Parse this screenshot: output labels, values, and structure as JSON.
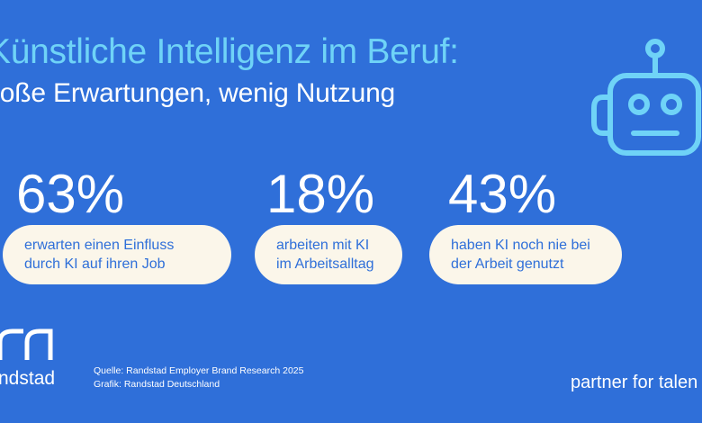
{
  "header": {
    "title": "Künstliche Intelligenz im Beruf:",
    "subtitle": "roße Erwartungen, wenig Nutzung"
  },
  "icons": {
    "robot": "robot-icon",
    "logo": "randstad-logo"
  },
  "colors": {
    "background": "#2f6fd9",
    "accent": "#6fd3f7",
    "pill": "#fbf6ea",
    "text": "#ffffff"
  },
  "chart_data": {
    "type": "table",
    "title": "Künstliche Intelligenz im Beruf:",
    "stats": [
      {
        "value": 63,
        "label": "63%",
        "description": "erwarten einen Einfluss\ndurch KI auf ihren Job"
      },
      {
        "value": 18,
        "label": "18%",
        "description": "arbeiten mit KI\nim Arbeitsalltag"
      },
      {
        "value": 43,
        "label": "43%",
        "description": "haben KI noch nie bei\nder Arbeit genutzt"
      }
    ]
  },
  "footer": {
    "brand": "ndstad",
    "source_line1": "Quelle: Randstad Employer Brand Research 2025",
    "source_line2": "Grafik: Randstad Deutschland",
    "tagline": "partner for talen"
  }
}
